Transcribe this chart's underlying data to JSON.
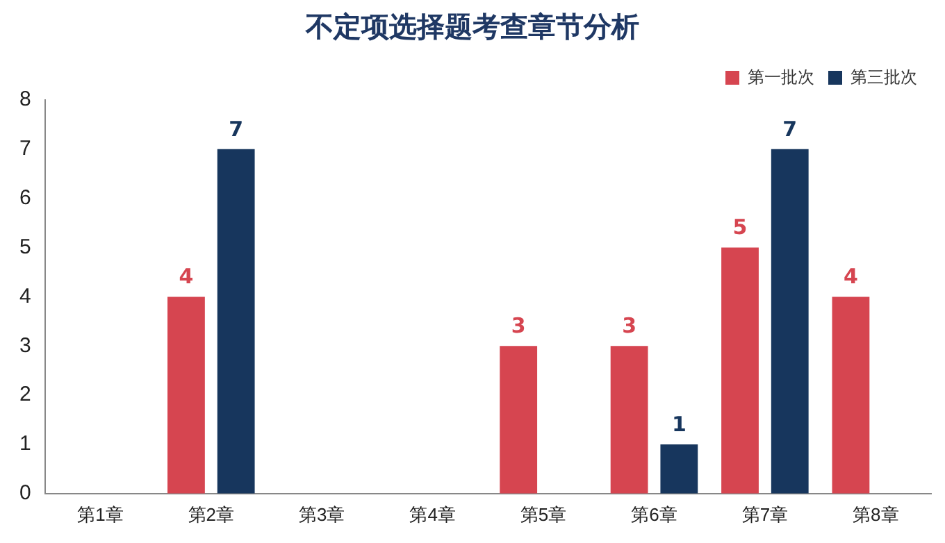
{
  "chart_data": {
    "type": "bar",
    "title": "不定项选择题考查章节分析",
    "categories": [
      "第1章",
      "第2章",
      "第3章",
      "第4章",
      "第5章",
      "第6章",
      "第7章",
      "第8章"
    ],
    "series": [
      {
        "name": "第一批次",
        "color": "#d64550",
        "values": [
          null,
          4,
          null,
          null,
          3,
          3,
          5,
          4
        ]
      },
      {
        "name": "第三批次",
        "color": "#17365d",
        "values": [
          null,
          7,
          null,
          null,
          null,
          1,
          7,
          null
        ]
      }
    ],
    "ylim": [
      0,
      8
    ],
    "yticks": [
      0,
      1,
      2,
      3,
      4,
      5,
      6,
      7,
      8
    ],
    "grid": false,
    "legend": "top right",
    "data_labels": true
  }
}
